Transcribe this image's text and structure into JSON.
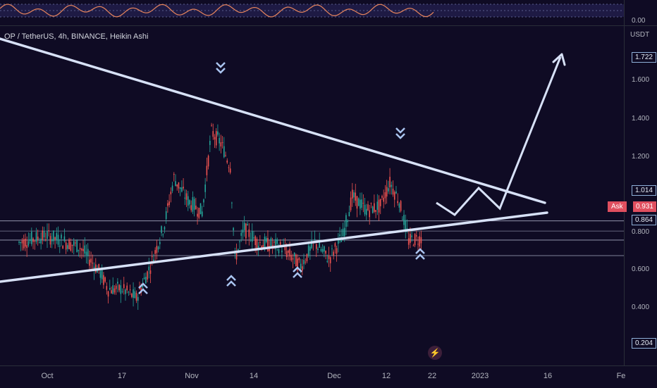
{
  "header": {
    "symbol": "OP / TetherUS, 4h, BINANCE, Heikin Ashi",
    "currency": "USDT"
  },
  "indicator": {
    "value_label": "0.00"
  },
  "price_axis": {
    "ticks": [
      "1.600",
      "1.400",
      "1.200",
      "0.800",
      "0.600",
      "0.400"
    ],
    "badges": {
      "top_target": "1.722",
      "level_high": "1.014",
      "ask_price": "0.931",
      "level_low": "0.864",
      "bottom": "0.204"
    },
    "ask_label": "Ask"
  },
  "time_axis": {
    "labels": [
      "Oct",
      "17",
      "Nov",
      "14",
      "Dec",
      "12",
      "22",
      "2023",
      "16",
      "Fe"
    ]
  },
  "colors": {
    "bull": "#26a69a",
    "bear": "#ef5350",
    "trendline": "#d7e1f7",
    "arrow": "#a9c4f0",
    "ask": "#e04f5f"
  },
  "chart_data": {
    "type": "candlestick",
    "y_range": [
      0.15,
      1.85
    ],
    "horizontal_levels": [
      1.014,
      0.931,
      0.864
    ],
    "projection_target": 1.722,
    "series_description": "Heikin Ashi price path of OP/USDT",
    "price_path": [
      {
        "x": "Sep 25",
        "y": 0.92
      },
      {
        "x": "Oct 1",
        "y": 0.95
      },
      {
        "x": "Oct 8",
        "y": 0.9
      },
      {
        "x": "Oct 12",
        "y": 0.8
      },
      {
        "x": "Oct 14",
        "y": 0.72
      },
      {
        "x": "Oct 17",
        "y": 0.72
      },
      {
        "x": "Oct 20",
        "y": 0.68
      },
      {
        "x": "Oct 23",
        "y": 0.82
      },
      {
        "x": "Oct 26",
        "y": 1.0
      },
      {
        "x": "Oct 28",
        "y": 1.2
      },
      {
        "x": "Oct 31",
        "y": 1.1
      },
      {
        "x": "Nov 3",
        "y": 1.05
      },
      {
        "x": "Nov 5",
        "y": 1.4
      },
      {
        "x": "Nov 7",
        "y": 1.35
      },
      {
        "x": "Nov 9",
        "y": 1.25
      },
      {
        "x": "Nov 10",
        "y": 0.85
      },
      {
        "x": "Nov 12",
        "y": 0.98
      },
      {
        "x": "Nov 15",
        "y": 0.92
      },
      {
        "x": "Nov 20",
        "y": 0.9
      },
      {
        "x": "Nov 24",
        "y": 0.82
      },
      {
        "x": "Nov 27",
        "y": 0.92
      },
      {
        "x": "Nov 30",
        "y": 0.85
      },
      {
        "x": "Dec 3",
        "y": 0.95
      },
      {
        "x": "Dec 5",
        "y": 1.12
      },
      {
        "x": "Dec 8",
        "y": 1.06
      },
      {
        "x": "Dec 11",
        "y": 1.08
      },
      {
        "x": "Dec 13",
        "y": 1.18
      },
      {
        "x": "Dec 15",
        "y": 1.1
      },
      {
        "x": "Dec 17",
        "y": 0.93
      },
      {
        "x": "Dec 20",
        "y": 0.94
      }
    ]
  }
}
